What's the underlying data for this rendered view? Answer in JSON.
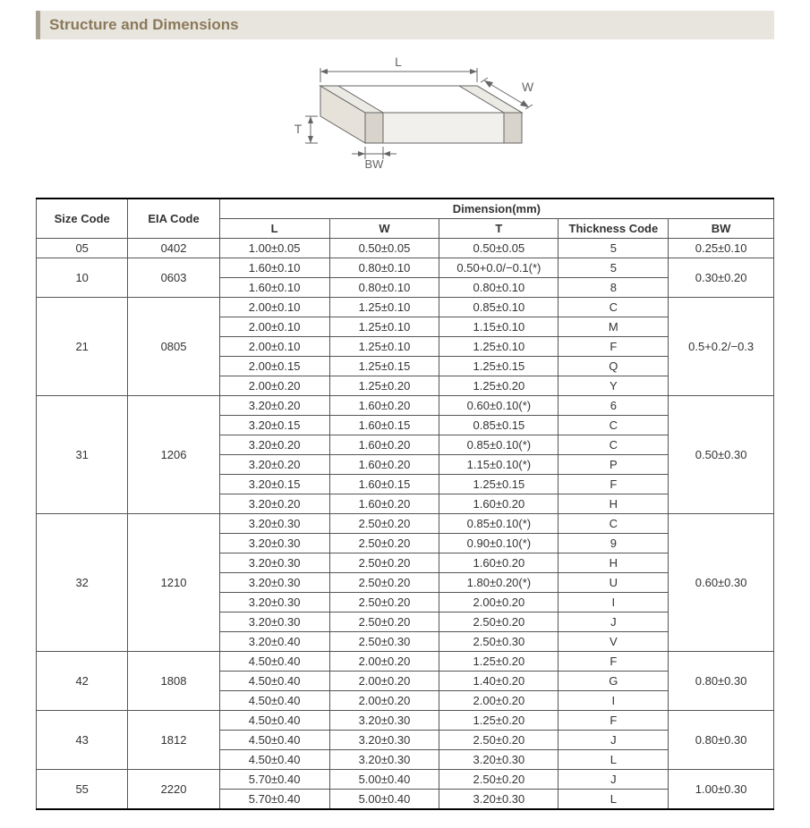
{
  "header": {
    "title": "Structure and Dimensions"
  },
  "diagram": {
    "labels": {
      "L": "L",
      "W": "W",
      "T": "T",
      "BW": "BW"
    },
    "stroke": "#666666",
    "fill_top": "#ffffff",
    "fill_front": "#f2f0ec",
    "fill_side": "#e6e2da",
    "fill_end_front": "#d8d4cc",
    "fill_end_side": "#c8c4bc",
    "label_color": "#666666",
    "label_fontsize": 14
  },
  "table": {
    "header_top": {
      "size": "Size Code",
      "eia": "EIA Code",
      "dim": "Dimension(mm)"
    },
    "header_sub": {
      "L": "L",
      "W": "W",
      "T": "T",
      "thick": "Thickness  Code",
      "BW": "BW"
    },
    "groups": [
      {
        "size": "05",
        "eia": "0402",
        "bw": "0.25±0.10",
        "rows": [
          {
            "L": "1.00±0.05",
            "W": "0.50±0.05",
            "T": "0.50±0.05",
            "tc": "5"
          }
        ]
      },
      {
        "size": "10",
        "eia": "0603",
        "bw": "0.30±0.20",
        "rows": [
          {
            "L": "1.60±0.10",
            "W": "0.80±0.10",
            "T": "0.50+0.0/−0.1(*)",
            "tc": "5"
          },
          {
            "L": "1.60±0.10",
            "W": "0.80±0.10",
            "T": "0.80±0.10",
            "tc": "8"
          }
        ]
      },
      {
        "size": "21",
        "eia": "0805",
        "bw": "0.5+0.2/−0.3",
        "rows": [
          {
            "L": "2.00±0.10",
            "W": "1.25±0.10",
            "T": "0.85±0.10",
            "tc": "C"
          },
          {
            "L": "2.00±0.10",
            "W": "1.25±0.10",
            "T": "1.15±0.10",
            "tc": "M"
          },
          {
            "L": "2.00±0.10",
            "W": "1.25±0.10",
            "T": "1.25±0.10",
            "tc": "F"
          },
          {
            "L": "2.00±0.15",
            "W": "1.25±0.15",
            "T": "1.25±0.15",
            "tc": "Q"
          },
          {
            "L": "2.00±0.20",
            "W": "1.25±0.20",
            "T": "1.25±0.20",
            "tc": "Y"
          }
        ]
      },
      {
        "size": "31",
        "eia": "1206",
        "bw": "0.50±0.30",
        "rows": [
          {
            "L": "3.20±0.20",
            "W": "1.60±0.20",
            "T": "0.60±0.10(*)",
            "tc": "6"
          },
          {
            "L": "3.20±0.15",
            "W": "1.60±0.15",
            "T": "0.85±0.15",
            "tc": "C"
          },
          {
            "L": "3.20±0.20",
            "W": "1.60±0.20",
            "T": "0.85±0.10(*)",
            "tc": "C"
          },
          {
            "L": "3.20±0.20",
            "W": "1.60±0.20",
            "T": "1.15±0.10(*)",
            "tc": "P"
          },
          {
            "L": "3.20±0.15",
            "W": "1.60±0.15",
            "T": "1.25±0.15",
            "tc": "F"
          },
          {
            "L": "3.20±0.20",
            "W": "1.60±0.20",
            "T": "1.60±0.20",
            "tc": "H"
          }
        ]
      },
      {
        "size": "32",
        "eia": "1210",
        "bw": "0.60±0.30",
        "rows": [
          {
            "L": "3.20±0.30",
            "W": "2.50±0.20",
            "T": "0.85±0.10(*)",
            "tc": "C"
          },
          {
            "L": "3.20±0.30",
            "W": "2.50±0.20",
            "T": "0.90±0.10(*)",
            "tc": "9"
          },
          {
            "L": "3.20±0.30",
            "W": "2.50±0.20",
            "T": "1.60±0.20",
            "tc": "H"
          },
          {
            "L": "3.20±0.30",
            "W": "2.50±0.20",
            "T": "1.80±0.20(*)",
            "tc": "U"
          },
          {
            "L": "3.20±0.30",
            "W": "2.50±0.20",
            "T": "2.00±0.20",
            "tc": "I"
          },
          {
            "L": "3.20±0.30",
            "W": "2.50±0.20",
            "T": "2.50±0.20",
            "tc": "J"
          },
          {
            "L": "3.20±0.40",
            "W": "2.50±0.30",
            "T": "2.50±0.30",
            "tc": "V"
          }
        ]
      },
      {
        "size": "42",
        "eia": "1808",
        "bw": "0.80±0.30",
        "rows": [
          {
            "L": "4.50±0.40",
            "W": "2.00±0.20",
            "T": "1.25±0.20",
            "tc": "F"
          },
          {
            "L": "4.50±0.40",
            "W": "2.00±0.20",
            "T": "1.40±0.20",
            "tc": "G"
          },
          {
            "L": "4.50±0.40",
            "W": "2.00±0.20",
            "T": "2.00±0.20",
            "tc": "I"
          }
        ]
      },
      {
        "size": "43",
        "eia": "1812",
        "bw": "0.80±0.30",
        "rows": [
          {
            "L": "4.50±0.40",
            "W": "3.20±0.30",
            "T": "1.25±0.20",
            "tc": "F"
          },
          {
            "L": "4.50±0.40",
            "W": "3.20±0.30",
            "T": "2.50±0.20",
            "tc": "J"
          },
          {
            "L": "4.50±0.40",
            "W": "3.20±0.30",
            "T": "3.20±0.30",
            "tc": "L"
          }
        ]
      },
      {
        "size": "55",
        "eia": "2220",
        "bw": "1.00±0.30",
        "rows": [
          {
            "L": "5.70±0.40",
            "W": "5.00±0.40",
            "T": "2.50±0.20",
            "tc": "J"
          },
          {
            "L": "5.70±0.40",
            "W": "5.00±0.40",
            "T": "3.20±0.30",
            "tc": "L"
          }
        ]
      }
    ]
  },
  "style": {
    "header_bg": "#e8e4de",
    "header_border": "#a8a090",
    "header_text_color": "#8a7a5a",
    "font_family": "Arial, sans-serif",
    "table_border_color": "#555555",
    "table_font_size": 13
  }
}
